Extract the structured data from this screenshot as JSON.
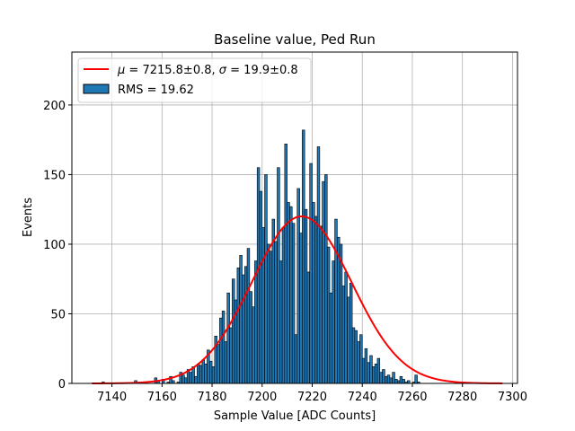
{
  "chart_data": {
    "type": "bar",
    "title": "Baseline value, Ped Run",
    "xlabel": "Sample Value [ADC Counts]",
    "ylabel": "Events",
    "xlim": [
      7124,
      7302
    ],
    "ylim": [
      0,
      238
    ],
    "xticks": [
      7140,
      7160,
      7180,
      7200,
      7220,
      7240,
      7260,
      7280,
      7300
    ],
    "yticks": [
      0,
      50,
      100,
      150,
      200
    ],
    "grid": true,
    "legend_placement": "top-left",
    "bin_start": 7136,
    "bin_width": 1,
    "bin_values": [
      1,
      0,
      0,
      0,
      0,
      0,
      0,
      0,
      0,
      0,
      0,
      0,
      0,
      2,
      0,
      0,
      0,
      1,
      0,
      0,
      0,
      4,
      2,
      0,
      3,
      0,
      1,
      5,
      2,
      0,
      1,
      8,
      6,
      4,
      10,
      8,
      12,
      5,
      14,
      13,
      17,
      14,
      24,
      16,
      12,
      34,
      28,
      47,
      52,
      30,
      65,
      40,
      75,
      60,
      83,
      92,
      78,
      84,
      97,
      66,
      55,
      88,
      155,
      138,
      112,
      150,
      100,
      95,
      118,
      102,
      155,
      88,
      112,
      172,
      130,
      127,
      115,
      35,
      140,
      108,
      182,
      125,
      80,
      158,
      130,
      120,
      170,
      113,
      145,
      150,
      98,
      65,
      88,
      118,
      105,
      100,
      70,
      80,
      62,
      72,
      40,
      38,
      30,
      35,
      18,
      25,
      15,
      20,
      12,
      14,
      18,
      8,
      10,
      5,
      6,
      4,
      8,
      3,
      2,
      5,
      3,
      1,
      2,
      0,
      1,
      6,
      1,
      0,
      0,
      0,
      0,
      0,
      0,
      0,
      0,
      0,
      0,
      0,
      0
    ],
    "bar_color": "#1f77b4",
    "series": [
      {
        "name": "$\\mu = 7215.8\\pm0.8$, $\\sigma = 19.9\\pm0.8$",
        "type": "line",
        "model": "gaussian",
        "mu": 7215.8,
        "sigma": 19.9,
        "amplitude": 120,
        "x_range": [
          7132,
          7296
        ],
        "color": "#ff0000"
      },
      {
        "name": "RMS = 19.62",
        "type": "bar",
        "color": "#1f77b4"
      }
    ]
  },
  "legend": {
    "fit_label_prefix_mu": "μ",
    "fit_label_mid": " = 7215.8±0.8, ",
    "fit_label_sigma": "σ",
    "fit_label_end": " = 19.9±0.8",
    "hist_label": "RMS = 19.62"
  }
}
